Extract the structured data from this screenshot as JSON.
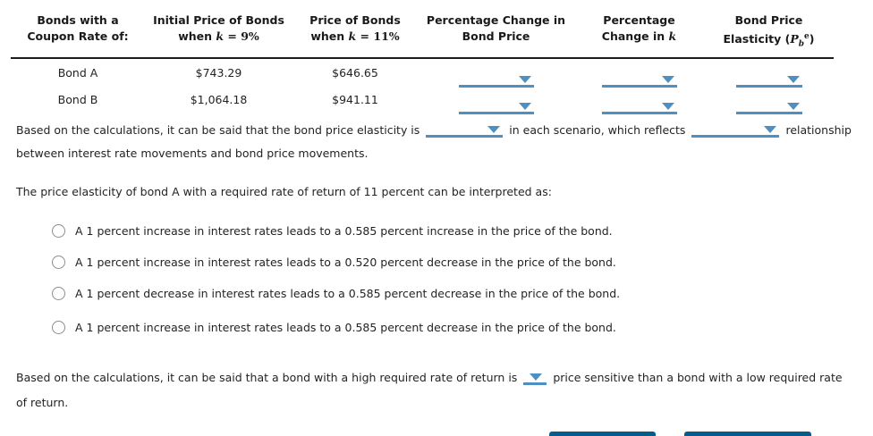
{
  "colors": {
    "dropdown_blue": "#4e90c2",
    "button_blue": "#065c8c",
    "rule": "#1c1c1c",
    "text": "#232323"
  },
  "table": {
    "headers": {
      "col1": {
        "line1": "Bonds with a",
        "line2": "Coupon Rate of:"
      },
      "col2": {
        "line1": "Initial Price of Bonds",
        "pre": "when ",
        "math": "k",
        "post": " = 9%"
      },
      "col3": {
        "line1": "Price of Bonds",
        "pre": "when ",
        "math": "k",
        "post": " = 11%"
      },
      "col4": {
        "line1": "Percentage Change in",
        "line2": "Bond Price"
      },
      "col5": {
        "line1": "Percentage",
        "pre": "Change in ",
        "math": "k"
      },
      "col6": {
        "line1": "Bond Price",
        "pre": "Elasticity (",
        "math": "P",
        "sub": "b",
        "sup": "e",
        "post": ")"
      }
    },
    "rows": [
      {
        "name": "Bond A",
        "price_k9": "$743.29",
        "price_k11": "$646.65"
      },
      {
        "name": "Bond B",
        "price_k9": "$1,064.18",
        "price_k11": "$941.11"
      }
    ]
  },
  "statement1": {
    "part1": "Based on the calculations, it can be said that the bond price elasticity is",
    "part2": "in each scenario, which reflects",
    "part3": "relationship",
    "line2": "between interest rate movements and bond price movements."
  },
  "question": "The price elasticity of bond A with a required rate of return of 11 percent can be interpreted as:",
  "options": [
    "A 1 percent increase in interest rates leads to a 0.585 percent increase in the price of the bond.",
    "A 1 percent increase in interest rates leads to a 0.520 percent decrease in the price of the bond.",
    "A 1 percent decrease in interest rates leads to a 0.585 percent decrease in the price of the bond.",
    "A 1 percent increase in interest rates leads to a 0.585 percent decrease in the price of the bond."
  ],
  "statement2": {
    "part1": "Based on the calculations, it can be said that a bond with a high required rate of return is",
    "part2": "price sensitive than a bond with a low required rate",
    "line2": "of return."
  }
}
